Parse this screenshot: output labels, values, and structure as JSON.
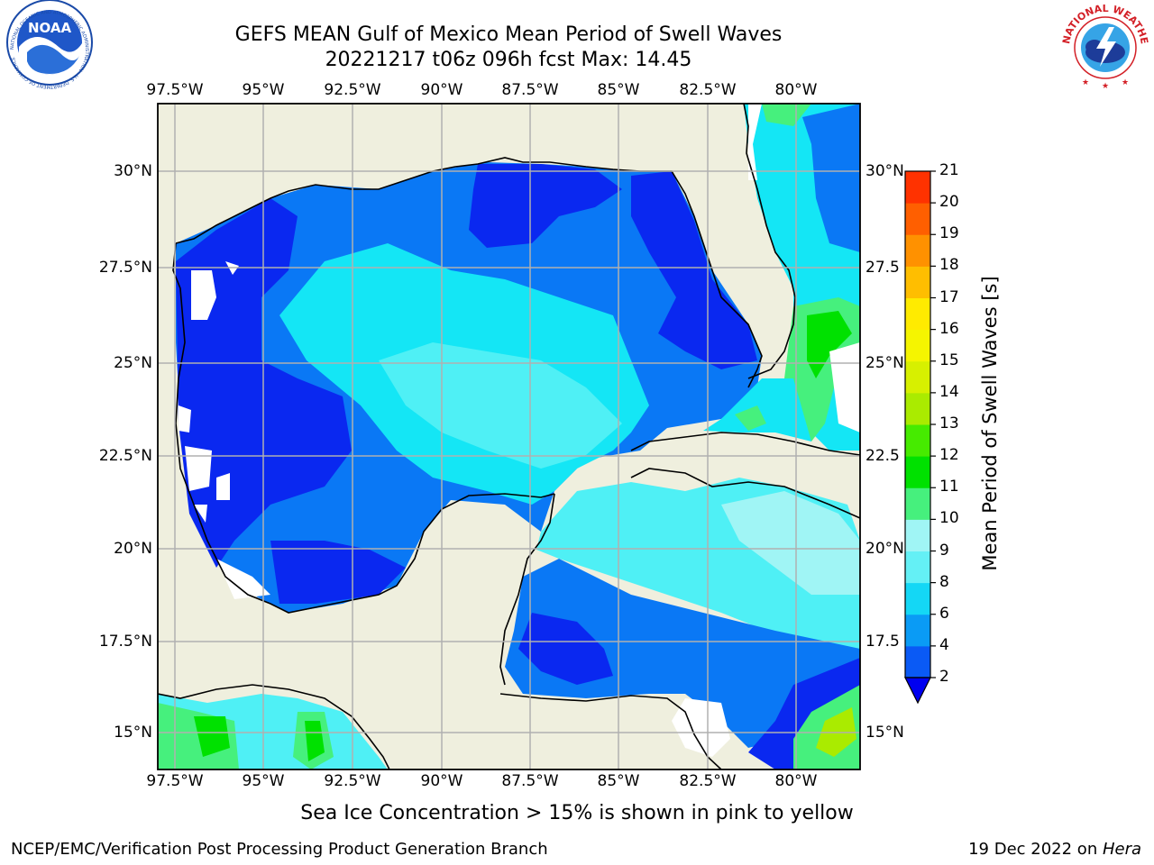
{
  "title": {
    "line1": "GEFS MEAN Gulf of Mexico Mean Period of Swell Waves",
    "line2": "20221217 t06z 096h fcst   Max: 14.45"
  },
  "longitude_labels": [
    "97.5°W",
    "95°W",
    "92.5°W",
    "90°W",
    "87.5°W",
    "85°W",
    "82.5°W",
    "80°W"
  ],
  "latitude_labels_left": [
    "30°N",
    "27.5°N",
    "25°N",
    "22.5°N",
    "20°N",
    "17.5°N",
    "15°N"
  ],
  "latitude_labels_right": [
    "30°N",
    "27.5",
    "25°N",
    "22.5",
    "20°N",
    "17.5",
    "15°N"
  ],
  "colorbar": {
    "label": "Mean Period of Swell Waves [s]",
    "ticks": [
      "2",
      "4",
      "6",
      "8",
      "9",
      "10",
      "11",
      "12",
      "13",
      "14",
      "15",
      "16",
      "17",
      "18",
      "19",
      "20",
      "21"
    ],
    "colors": [
      "#0a5af5",
      "#0a9bf5",
      "#14d7f5",
      "#64f0f5",
      "#a0f5f5",
      "#46f07d",
      "#00e100",
      "#46eb00",
      "#aaeb00",
      "#d7f000",
      "#f5f500",
      "#ffeb00",
      "#ffbe00",
      "#ff9100",
      "#ff5f00",
      "#ff3200"
    ],
    "underflow_color": "#0000f0"
  },
  "map": {
    "land_color": "#efefde",
    "water_colors": {
      "deep_blue": "#0a28f0",
      "blue": "#0a78f5",
      "cyan": "#14e6f5",
      "light_cyan": "#4ff0f5",
      "pale_cyan": "#a0f5f5",
      "green": "#46f07d",
      "bright_green": "#00e100",
      "yellow_green": "#aaeb00"
    }
  },
  "logos": {
    "left": {
      "name": "NOAA",
      "ring_text": "NATIONAL OCEANIC AND ATMOSPHERIC ADMINISTRATION · U.S. DEPARTMENT OF COMMERCE"
    },
    "right": {
      "ring_text": "NATIONAL WEATHER SERVICE"
    }
  },
  "subnote": "Sea Ice Concentration > 15% is shown in pink to yellow",
  "footer": {
    "left": "NCEP/EMC/Verification Post Processing Product Generation Branch",
    "right_date": "19 Dec 2022 on ",
    "right_host": "Hera"
  }
}
